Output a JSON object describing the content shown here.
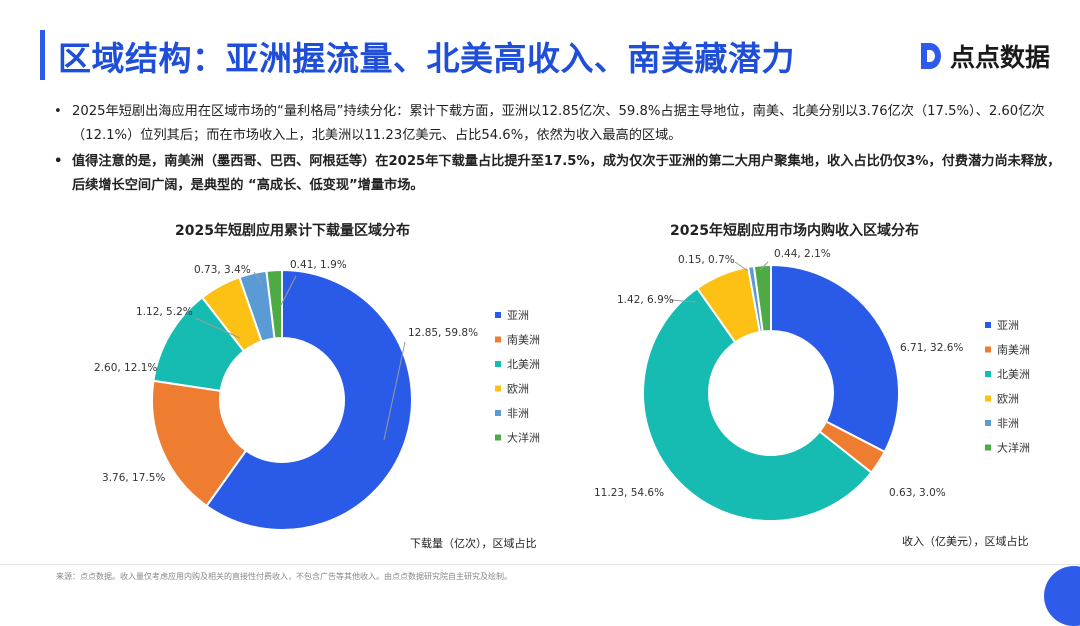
{
  "header": {
    "title": "区域结构：亚洲握流量、北美高收入、南美藏潜力",
    "logo_text": "点点数据"
  },
  "bullets": [
    "2025年短剧出海应用在区域市场的“量利格局”持续分化：累计下载方面，亚洲以12.85亿次、59.8%占据主导地位，南美、北美分别以3.76亿次（17.5%）、2.60亿次（12.1%）位列其后；而在市场收入上，北美洲以11.23亿美元、占比54.6%，依然为收入最高的区域。",
    "值得注意的是，南美洲（墨西哥、巴西、阿根廷等）在2025年下载量占比提升至17.5%，成为仅次于亚洲的第二大用户聚集地，收入占比仍仅3%，付费潜力尚未释放，后续增长空间广阔，是典型的 “高成长、低变现”增量市场。"
  ],
  "colors": {
    "亚洲": "#2a5be8",
    "南美洲": "#ef7d31",
    "北美洲": "#16bbb1",
    "欧洲": "#fcc114",
    "非洲": "#5b9bd5",
    "大洋洲": "#4eaa45"
  },
  "chart_data": [
    {
      "type": "pie",
      "title": "2025年短剧应用累计下载量区域分布",
      "note": "下载量（亿次），区域占比",
      "legend_position": "right",
      "categories": [
        "亚洲",
        "南美洲",
        "北美洲",
        "欧洲",
        "非洲",
        "大洋洲"
      ],
      "values": [
        12.85,
        3.76,
        2.6,
        1.12,
        0.73,
        0.41
      ],
      "data_labels": [
        "12.85, 59.8%",
        "3.76, 17.5%",
        "2.60, 12.1%",
        "1.12, 5.2%",
        "0.73, 3.4%",
        "0.41, 1.9%"
      ]
    },
    {
      "type": "pie",
      "title": "2025年短剧应用市场内购收入区域分布",
      "note": "收入（亿美元），区域占比",
      "legend_position": "right",
      "categories": [
        "亚洲",
        "南美洲",
        "北美洲",
        "欧洲",
        "非洲",
        "大洋洲"
      ],
      "values": [
        6.71,
        0.63,
        11.23,
        1.42,
        0.15,
        0.44
      ],
      "data_labels": [
        "6.71, 32.6%",
        "0.63, 3.0%",
        "11.23, 54.6%",
        "1.42, 6.9%",
        "0.15, 0.7%",
        "0.44, 2.1%"
      ]
    }
  ],
  "footer": {
    "source": "来源：点点数据。收入量仅考虑应用内购及相关的直接性付费收入，不包含广告等其他收入。由点点数据研究院自主研究及绘制。"
  }
}
